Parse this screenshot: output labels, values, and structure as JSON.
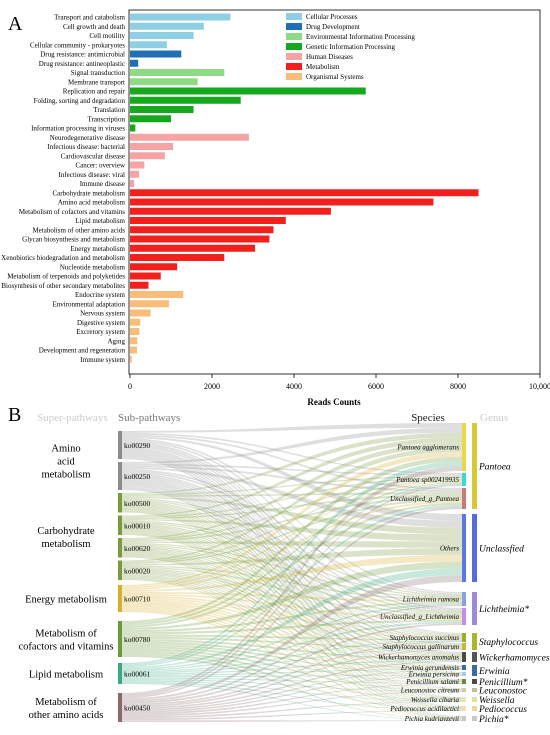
{
  "panel_a": {
    "label": "A",
    "xlabel": "Reads Counts",
    "xticks": [
      "0",
      "2000",
      "4000",
      "6000",
      "8000",
      "10,000"
    ]
  },
  "panel_b": {
    "label": "B",
    "col_superpathways": "Super-pathways",
    "col_subpathways": "Sub-pathways",
    "col_species": "Species",
    "col_genus": "Genus",
    "superpathways": [
      {
        "name": "Amino acid metabolism",
        "lines": [
          "Amino",
          "acid",
          "metabolism"
        ],
        "color": "#8c8c8c",
        "codes": [
          "ko00290",
          "ko00250"
        ]
      },
      {
        "name": "Carbohydrate metabolism",
        "lines": [
          "Carbohydrate",
          "metabolism"
        ],
        "color": "#7a9a3c",
        "codes": [
          "ko00500",
          "ko00010",
          "ko00620",
          "ko00020"
        ]
      },
      {
        "name": "Energy metabolism",
        "lines": [
          "Energy metabolism"
        ],
        "color": "#d8b02c",
        "codes": [
          "ko00710"
        ]
      },
      {
        "name": "Metabolism of cofactors and vitamins",
        "lines": [
          "Metabolism of",
          "cofactors and vitamins"
        ],
        "color": "#6a9a3a",
        "codes": [
          "ko00780"
        ]
      },
      {
        "name": "Lipid metabolism",
        "lines": [
          "Lipid metabolism"
        ],
        "color": "#3aa886",
        "codes": [
          "ko00061"
        ]
      },
      {
        "name": "Metabolism of other amino acids",
        "lines": [
          "Metabolism of",
          "other amino acids"
        ],
        "color": "#8a6a6a",
        "codes": [
          "ko00450"
        ]
      }
    ],
    "species": [
      {
        "name": "Pantoea agglomerans",
        "color": "#e8d84a"
      },
      {
        "name": "Pantoea sp002419935",
        "color": "#3ad8d8"
      },
      {
        "name": "Unclassified_g_Pantoea",
        "color": "#c87a7a"
      },
      {
        "name": "Others",
        "color": "#5a7ae0"
      },
      {
        "name": "Lichtheimia ramosa",
        "color": "#8aa0e0"
      },
      {
        "name": "Unclassified_g_Lichtheimia",
        "color": "#c88ae8"
      },
      {
        "name": "Staphylococcus succinus",
        "color": "#98b028"
      },
      {
        "name": "Staphylococcus gallinarum",
        "color": "#c8b83a"
      },
      {
        "name": "Wickerhamomyces anomalus",
        "color": "#4a4a4a"
      },
      {
        "name": "Erwinia gerundensis",
        "color": "#3a6aa8"
      },
      {
        "name": "Erwinia persicina",
        "color": "#a8c8e8"
      },
      {
        "name": "Penicillium salami",
        "color": "#6a8a3a"
      },
      {
        "name": "Leuconostoc citreum",
        "color": "#d8c8a8"
      },
      {
        "name": "Weissella cibaria",
        "color": "#e8e8a8"
      },
      {
        "name": "Pediococcus acidilactici",
        "color": "#f0e0b0"
      },
      {
        "name": "Pichia kudriavzevii",
        "color": "#c8c8c8"
      }
    ],
    "genera": [
      {
        "name": "Pantoea",
        "color": "#d8c838"
      },
      {
        "name": "Unclassfied",
        "color": "#5a6ad8"
      },
      {
        "name": "Lichtheimia*",
        "color": "#9a8ad8"
      },
      {
        "name": "Staphylococcus",
        "color": "#a8b828"
      },
      {
        "name": "Wickerhamomyces*",
        "color": "#555555"
      },
      {
        "name": "Erwinia",
        "color": "#3a6aa8"
      },
      {
        "name": "Penicillium*",
        "color": "#4a4a4a"
      },
      {
        "name": "Leuconostoc",
        "color": "#c8b898"
      },
      {
        "name": "Weissella",
        "color": "#e0e098"
      },
      {
        "name": "Pediococcus",
        "color": "#e8d8a0"
      },
      {
        "name": "Pichia*",
        "color": "#c8c8c8"
      }
    ]
  },
  "chart_data": {
    "type": "bar",
    "orientation": "horizontal",
    "xlabel": "Reads Counts",
    "xlim": [
      0,
      10000
    ],
    "categories": [
      "Transport and catabolism",
      "Cell growth and death",
      "Cell motility",
      "Cellular community - prokaryotes",
      "Drug resistance: antimicrobial",
      "Drug resistance: antineoplastic",
      "Signal transduction",
      "Membrane transport",
      "Replication and repair",
      "Folding, sorting and degradation",
      "Translation",
      "Transcription",
      "Information processing in viruses",
      "Neurodegenerative disease",
      "Infectious disease: bacterial",
      "Cardiovascular disease",
      "Cancer: overview",
      "Infectious disease: viral",
      "Immune disease",
      "Carbohydrate metabolism",
      "Amino acid metabolism",
      "Metabolism of cofactors and vitamins",
      "Lipid metabolism",
      "Metabolism of other amino acids",
      "Glycan biosynthesis and metabolism",
      "Energy metabolism",
      "Xenobiotics biodegradation and metabolism",
      "Nucleotide metabolism",
      "Metabolism of terpenoids and polyketides",
      "Biosynthesis of other secondary metabolites",
      "Endocrine system",
      "Environmental adaptation",
      "Nervous system",
      "Digestive system",
      "Excretory system",
      "Aging",
      "Development and regeneration",
      "Immune system"
    ],
    "values": [
      2450,
      1800,
      1550,
      900,
      1250,
      200,
      2300,
      1650,
      5750,
      2700,
      1550,
      1000,
      130,
      2900,
      1050,
      850,
      350,
      220,
      100,
      8500,
      7400,
      4900,
      3800,
      3500,
      3400,
      3050,
      2300,
      1150,
      750,
      450,
      1300,
      950,
      500,
      250,
      230,
      180,
      170,
      40
    ],
    "groups": [
      "Cellular Processes",
      "Cellular Processes",
      "Cellular Processes",
      "Cellular Processes",
      "Drug Development",
      "Drug Development",
      "Environmental Information Processing",
      "Environmental Information Processing",
      "Genetic Information Processing",
      "Genetic Information Processing",
      "Genetic Information Processing",
      "Genetic Information Processing",
      "Genetic Information Processing",
      "Human Diseases",
      "Human Diseases",
      "Human Diseases",
      "Human Diseases",
      "Human Diseases",
      "Human Diseases",
      "Metabolism",
      "Metabolism",
      "Metabolism",
      "Metabolism",
      "Metabolism",
      "Metabolism",
      "Metabolism",
      "Metabolism",
      "Metabolism",
      "Metabolism",
      "Metabolism",
      "Organismal Systems",
      "Organismal Systems",
      "Organismal Systems",
      "Organismal Systems",
      "Organismal Systems",
      "Organismal Systems",
      "Organismal Systems",
      "Organismal Systems"
    ],
    "legend": [
      {
        "name": "Cellular Processes",
        "color": "#8ecfe3"
      },
      {
        "name": "Drug Development",
        "color": "#1f6fb2"
      },
      {
        "name": "Environmental Information Processing",
        "color": "#8fdb85"
      },
      {
        "name": "Genetic Information Processing",
        "color": "#15a81c"
      },
      {
        "name": "Human Diseases",
        "color": "#f5a3a3"
      },
      {
        "name": "Metabolism",
        "color": "#f2201c"
      },
      {
        "name": "Organismal Systems",
        "color": "#f8bd78"
      }
    ],
    "legend_position": "top-right"
  }
}
